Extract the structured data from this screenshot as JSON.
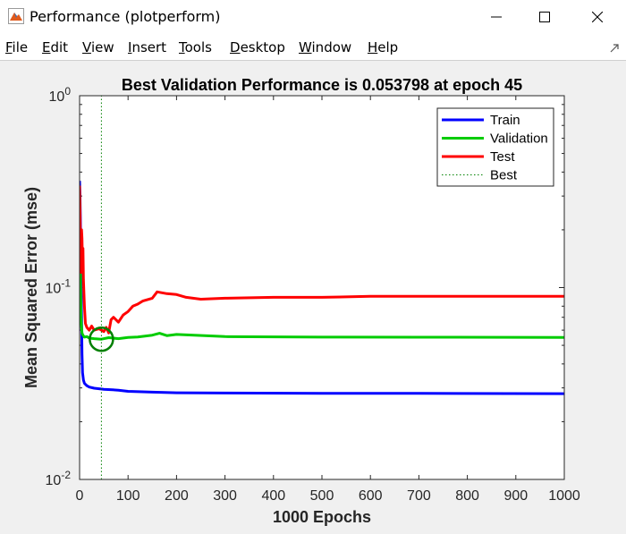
{
  "window": {
    "title": "Performance (plotperform)",
    "icon": "matlab-figure-icon",
    "controls": [
      "minimize-icon",
      "maximize-icon",
      "close-icon"
    ]
  },
  "menu": {
    "items": [
      {
        "label": "File",
        "key": "F"
      },
      {
        "label": "Edit",
        "key": "E"
      },
      {
        "label": "View",
        "key": "V"
      },
      {
        "label": "Insert",
        "key": "I"
      },
      {
        "label": "Tools",
        "key": "T"
      },
      {
        "label": "Desktop",
        "key": "D"
      },
      {
        "label": "Window",
        "key": "W"
      },
      {
        "label": "Help",
        "key": "H"
      }
    ]
  },
  "chart_data": {
    "type": "line",
    "title": "Best Validation Performance is 0.053798 at epoch 45",
    "xlabel": "1000 Epochs",
    "ylabel": "Mean Squared Error  (mse)",
    "xlim": [
      0,
      1000
    ],
    "ylim": [
      0.01,
      1
    ],
    "yscale": "log",
    "xticks": [
      0,
      100,
      200,
      300,
      400,
      500,
      600,
      700,
      800,
      900,
      1000
    ],
    "yticks": [
      {
        "value": 1,
        "base": "10",
        "exp": "0"
      },
      {
        "value": 0.1,
        "base": "10",
        "exp": "-1"
      },
      {
        "value": 0.01,
        "base": "10",
        "exp": "-2"
      }
    ],
    "legend_position": "top-right",
    "grid": false,
    "series": [
      {
        "name": "Train",
        "color": "#0000ff",
        "x": [
          0,
          1,
          2,
          3,
          4,
          5,
          6,
          8,
          10,
          15,
          20,
          30,
          50,
          80,
          100,
          150,
          200,
          300,
          500,
          700,
          1000
        ],
        "y": [
          0.36,
          0.3,
          0.2,
          0.12,
          0.07,
          0.045,
          0.036,
          0.033,
          0.0317,
          0.0308,
          0.0303,
          0.0299,
          0.0295,
          0.0292,
          0.0288,
          0.0285,
          0.0283,
          0.0282,
          0.0281,
          0.0281,
          0.028
        ]
      },
      {
        "name": "Validation",
        "color": "#00cc00",
        "x": [
          0,
          1,
          2,
          3,
          4,
          5,
          6,
          8,
          10,
          15,
          20,
          30,
          45,
          60,
          80,
          100,
          120,
          150,
          165,
          180,
          200,
          300,
          500,
          700,
          1000
        ],
        "y": [
          0.32,
          0.2,
          0.1,
          0.07,
          0.062,
          0.058,
          0.057,
          0.056,
          0.0552,
          0.0555,
          0.0545,
          0.0542,
          0.0538,
          0.0548,
          0.0542,
          0.055,
          0.0553,
          0.0565,
          0.0578,
          0.0562,
          0.057,
          0.0555,
          0.0552,
          0.0551,
          0.055
        ]
      },
      {
        "name": "Test",
        "color": "#ff0000",
        "x": [
          0,
          1,
          2,
          3,
          4,
          5,
          6,
          7,
          8,
          10,
          12,
          15,
          20,
          25,
          30,
          40,
          45,
          50,
          55,
          60,
          65,
          70,
          80,
          90,
          100,
          110,
          120,
          130,
          150,
          160,
          170,
          180,
          200,
          220,
          250,
          300,
          400,
          500,
          600,
          700,
          800,
          900,
          1000
        ],
        "y": [
          0.34,
          0.25,
          0.15,
          0.12,
          0.2,
          0.18,
          0.13,
          0.16,
          0.11,
          0.08,
          0.065,
          0.062,
          0.06,
          0.063,
          0.06,
          0.061,
          0.06,
          0.059,
          0.062,
          0.058,
          0.068,
          0.07,
          0.066,
          0.072,
          0.075,
          0.08,
          0.082,
          0.085,
          0.088,
          0.095,
          0.094,
          0.093,
          0.092,
          0.089,
          0.087,
          0.088,
          0.089,
          0.089,
          0.09,
          0.09,
          0.09,
          0.09,
          0.09
        ]
      },
      {
        "name": "Best",
        "color": "#008000",
        "style": "dotted",
        "x": [
          45,
          45
        ],
        "y": [
          0.01,
          1
        ]
      }
    ],
    "best_point": {
      "epoch": 45,
      "value": 0.053798
    }
  }
}
